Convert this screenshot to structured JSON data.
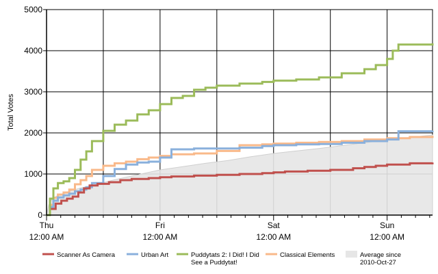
{
  "chart_data": {
    "type": "line",
    "ylabel": "Total Votes",
    "xlabel": "",
    "ylim": [
      0,
      5000
    ],
    "yticks": [
      0,
      1000,
      2000,
      3000,
      4000,
      5000
    ],
    "xlim": [
      0,
      3.4
    ],
    "x_unit": "days",
    "x_major_ticks": [
      {
        "x": 0,
        "day": "Thu",
        "time": "12:00 AM"
      },
      {
        "x": 1,
        "day": "Fri",
        "time": "12:00 AM"
      },
      {
        "x": 2,
        "day": "Sat",
        "time": "12:00 AM"
      },
      {
        "x": 3,
        "day": "Sun",
        "time": "12:00 AM"
      }
    ],
    "grid": true,
    "legend_position": "bottom",
    "colors": {
      "scanner": "#c0504d",
      "urban": "#8ab0dc",
      "puddytats": "#9bbb59",
      "classical": "#f9b98a",
      "average": "#e6e6e6",
      "average_edge": "#cfcfcf"
    },
    "series": [
      {
        "name": "Scanner As Camera",
        "key": "scanner",
        "x": [
          0,
          0.03,
          0.08,
          0.13,
          0.18,
          0.23,
          0.28,
          0.33,
          0.38,
          0.45,
          0.55,
          0.65,
          0.75,
          0.9,
          1.0,
          1.1,
          1.3,
          1.5,
          1.7,
          1.9,
          2.0,
          2.1,
          2.3,
          2.5,
          2.7,
          2.8,
          2.9,
          3.0,
          3.2,
          3.4
        ],
        "y": [
          0,
          150,
          280,
          350,
          400,
          450,
          550,
          650,
          720,
          760,
          800,
          850,
          880,
          900,
          920,
          940,
          960,
          980,
          1000,
          1020,
          1040,
          1060,
          1080,
          1100,
          1140,
          1170,
          1200,
          1230,
          1260,
          1280
        ]
      },
      {
        "name": "Urban Art",
        "key": "urban",
        "x": [
          0,
          0.03,
          0.06,
          0.1,
          0.15,
          0.2,
          0.25,
          0.3,
          0.35,
          0.4,
          0.5,
          0.6,
          0.7,
          0.8,
          0.9,
          1.0,
          1.1,
          1.3,
          1.5,
          1.7,
          1.9,
          2.0,
          2.2,
          2.4,
          2.6,
          2.8,
          3.0,
          3.1,
          3.4
        ],
        "y": [
          0,
          200,
          350,
          430,
          480,
          520,
          580,
          620,
          680,
          780,
          950,
          1120,
          1230,
          1280,
          1300,
          1400,
          1600,
          1620,
          1620,
          1640,
          1680,
          1700,
          1720,
          1730,
          1760,
          1800,
          1840,
          2040,
          2050
        ]
      },
      {
        "name": "Puddytats 2: I Did! I Did See a Puddytat!",
        "key": "puddytats",
        "x": [
          0,
          0.03,
          0.06,
          0.1,
          0.15,
          0.2,
          0.25,
          0.3,
          0.35,
          0.4,
          0.5,
          0.6,
          0.7,
          0.8,
          0.9,
          1.0,
          1.1,
          1.2,
          1.3,
          1.4,
          1.5,
          1.7,
          1.9,
          2.0,
          2.2,
          2.4,
          2.6,
          2.8,
          2.9,
          3.0,
          3.05,
          3.1,
          3.4
        ],
        "y": [
          0,
          400,
          650,
          780,
          820,
          900,
          1100,
          1350,
          1550,
          1800,
          2050,
          2200,
          2300,
          2450,
          2550,
          2700,
          2850,
          2900,
          3050,
          3100,
          3150,
          3200,
          3240,
          3270,
          3300,
          3350,
          3450,
          3550,
          3650,
          3800,
          4000,
          4150,
          4180
        ]
      },
      {
        "name": "Classical Elements",
        "key": "classical",
        "x": [
          0,
          0.03,
          0.06,
          0.1,
          0.15,
          0.2,
          0.25,
          0.3,
          0.35,
          0.4,
          0.5,
          0.6,
          0.7,
          0.8,
          0.9,
          1.0,
          1.1,
          1.3,
          1.5,
          1.7,
          1.9,
          2.0,
          2.2,
          2.4,
          2.6,
          2.8,
          3.0,
          3.2,
          3.4
        ],
        "y": [
          0,
          250,
          420,
          500,
          550,
          620,
          750,
          850,
          950,
          1100,
          1200,
          1260,
          1300,
          1360,
          1400,
          1440,
          1480,
          1500,
          1560,
          1700,
          1720,
          1740,
          1760,
          1780,
          1800,
          1840,
          1870,
          1900,
          1930
        ]
      },
      {
        "name": "Average since 2010-Oct-27",
        "key": "average",
        "x": [
          0,
          0.02,
          0.05,
          0.1,
          0.2,
          0.3,
          0.4,
          0.5,
          0.6,
          0.7,
          0.8,
          0.9,
          1.0,
          1.2,
          1.4,
          1.6,
          1.8,
          2.0,
          2.2,
          2.4,
          2.6,
          2.8,
          3.0,
          3.2,
          3.4
        ],
        "y": [
          0,
          250,
          400,
          480,
          580,
          660,
          720,
          790,
          860,
          920,
          980,
          1040,
          1100,
          1180,
          1260,
          1330,
          1420,
          1500,
          1560,
          1620,
          1690,
          1760,
          1830,
          1890,
          1950
        ]
      }
    ]
  }
}
